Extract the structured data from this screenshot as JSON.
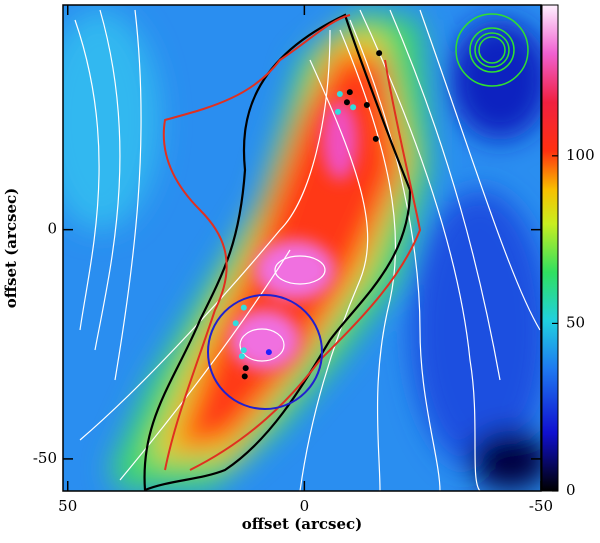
{
  "chart_data": {
    "type": "scatter",
    "xlabel": "offset (arcsec)",
    "ylabel": "offset (arcsec)",
    "xlim": [
      51,
      -50
    ],
    "ylim": [
      -57,
      49
    ],
    "xticks": [
      50,
      0,
      -50
    ],
    "yticks": [
      0,
      -50
    ],
    "colorbar": {
      "lim": [
        0,
        145
      ],
      "ticks": [
        0,
        50,
        100
      ]
    },
    "series": [
      {
        "color": "#000000",
        "x": [
          -15.8,
          -9.6,
          -9.0,
          -13.2,
          -15.1,
          12.4,
          12.6
        ],
        "y": [
          38.5,
          30.0,
          27.8,
          27.2,
          19.8,
          -30.2,
          -32.0
        ]
      },
      {
        "color": "#33dddd",
        "x": [
          -7.5,
          -10.3,
          -7.1,
          12.8,
          14.5,
          12.8,
          13.2
        ],
        "y": [
          29.6,
          26.7,
          25.7,
          -17.0,
          -20.4,
          -26.3,
          -27.6
        ]
      },
      {
        "color": "#2020ff",
        "x": [
          7.5
        ],
        "y": [
          -26.7
        ]
      }
    ]
  }
}
